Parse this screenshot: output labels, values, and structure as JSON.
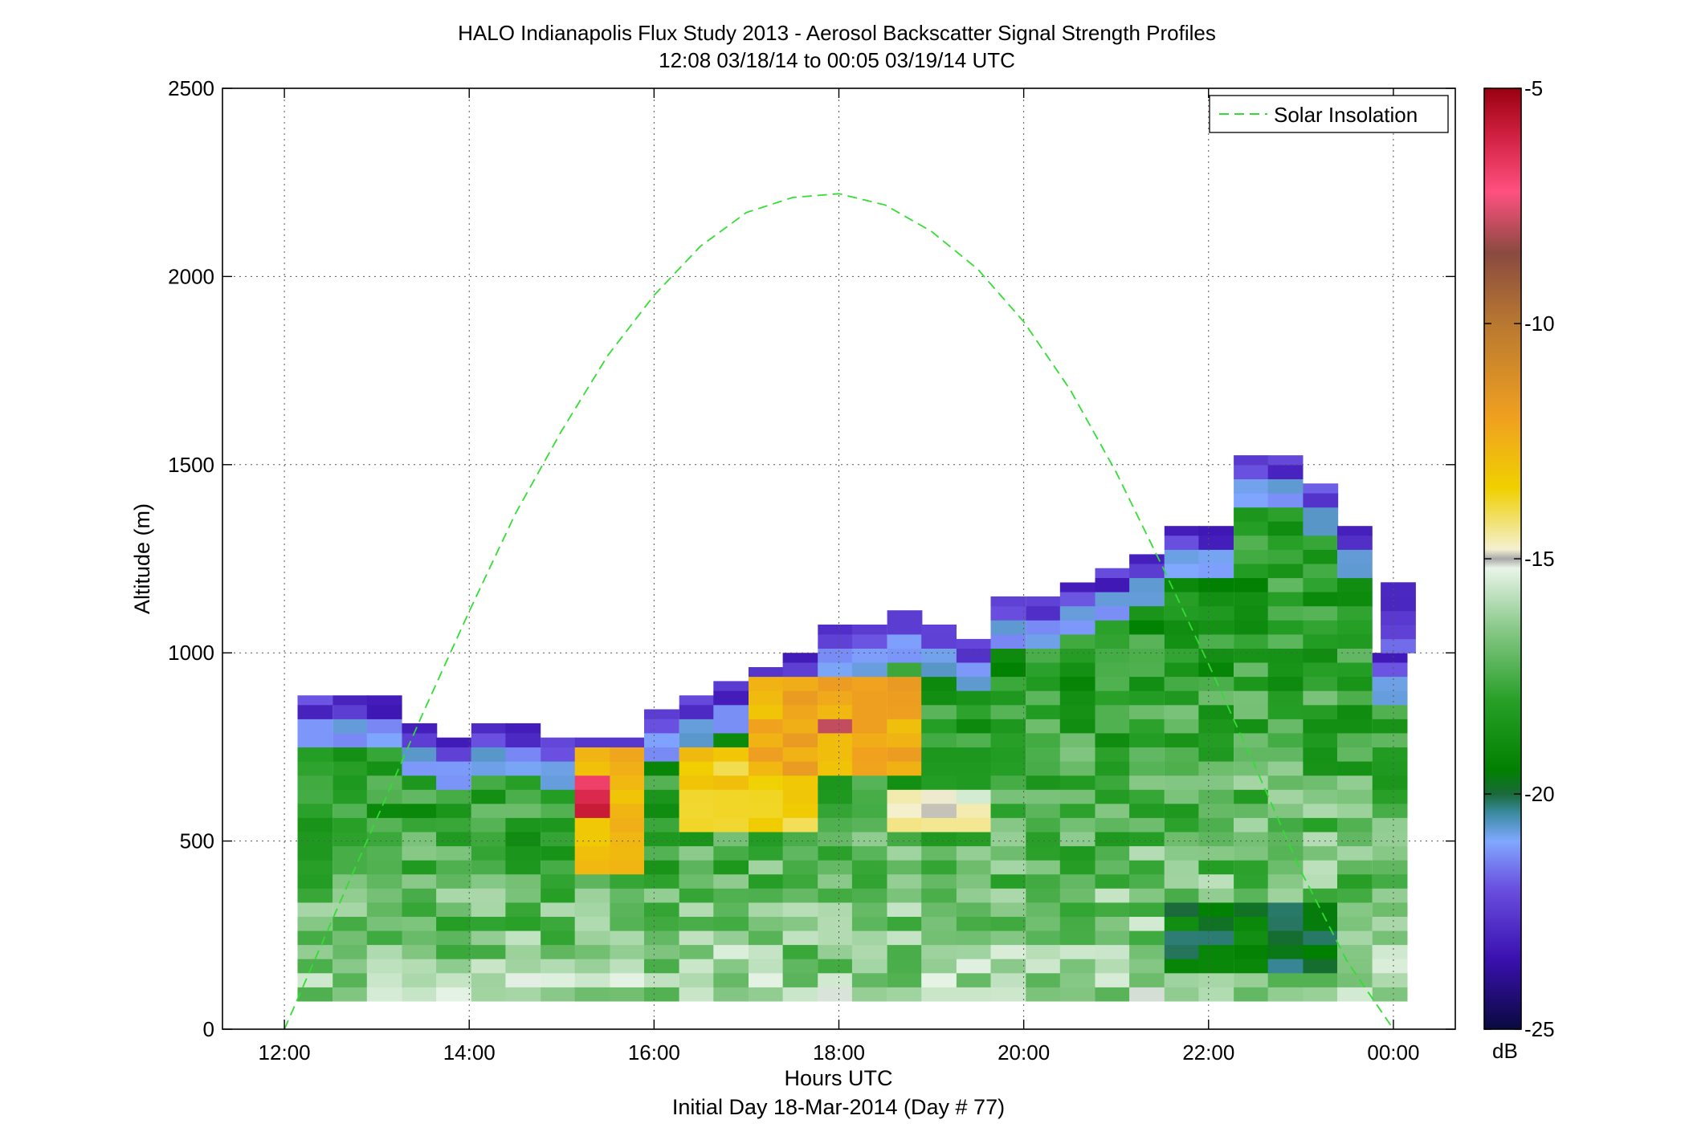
{
  "chart_data": {
    "type": "heatmap",
    "title_lines": [
      "HALO Indianapolis Flux Study 2013 - Aerosol Backscatter Signal Strength Profiles",
      "12:08 03/18/14 to 00:05 03/19/14  UTC"
    ],
    "xlabel_lines": [
      "Hours UTC",
      "Initial Day 18-Mar-2014 (Day # 77)"
    ],
    "ylabel": "Altitude (m)",
    "x_ticks": [
      {
        "value": 12,
        "label": "12:00"
      },
      {
        "value": 14,
        "label": "14:00"
      },
      {
        "value": 16,
        "label": "16:00"
      },
      {
        "value": 18,
        "label": "18:00"
      },
      {
        "value": 20,
        "label": "20:00"
      },
      {
        "value": 22,
        "label": "22:00"
      },
      {
        "value": 24,
        "label": "00:00"
      }
    ],
    "y_ticks": [
      {
        "value": 0,
        "label": "0"
      },
      {
        "value": 500,
        "label": "500"
      },
      {
        "value": 1000,
        "label": "1000"
      },
      {
        "value": 1500,
        "label": "1500"
      },
      {
        "value": 2000,
        "label": "2000"
      },
      {
        "value": 2500,
        "label": "2500"
      }
    ],
    "xlim": [
      11.33,
      24.67
    ],
    "ylim": [
      0,
      2500
    ],
    "grid": true,
    "colorbar": {
      "label": "dB",
      "min": -25,
      "max": -5,
      "ticks": [
        {
          "value": -5,
          "label": "-5"
        },
        {
          "value": -10,
          "label": "-10"
        },
        {
          "value": -15,
          "label": "-15"
        },
        {
          "value": -20,
          "label": "-20"
        },
        {
          "value": -25,
          "label": "-25"
        }
      ],
      "stops": [
        {
          "v": -25,
          "c": "#0a0a40"
        },
        {
          "v": -23.5,
          "c": "#3a10b0"
        },
        {
          "v": -22,
          "c": "#6a50e0"
        },
        {
          "v": -21,
          "c": "#80a8ff"
        },
        {
          "v": -20.4,
          "c": "#3a8aa0"
        },
        {
          "v": -20,
          "c": "#1a6a3a"
        },
        {
          "v": -19.5,
          "c": "#008000"
        },
        {
          "v": -18,
          "c": "#28a028"
        },
        {
          "v": -16.5,
          "c": "#88c888"
        },
        {
          "v": -15.2,
          "c": "#e8f4e8"
        },
        {
          "v": -15,
          "c": "#a8a8a8"
        },
        {
          "v": -14.8,
          "c": "#f4f0d0"
        },
        {
          "v": -13.5,
          "c": "#f0d000"
        },
        {
          "v": -12,
          "c": "#f0a020"
        },
        {
          "v": -10,
          "c": "#b87830"
        },
        {
          "v": -8.5,
          "c": "#8a4a40"
        },
        {
          "v": -7.2,
          "c": "#ff5080"
        },
        {
          "v": -6,
          "c": "#d02040"
        },
        {
          "v": -5,
          "c": "#9a0010"
        }
      ]
    },
    "legend": {
      "position": "top-right",
      "entries": [
        {
          "label": "Solar Insolation",
          "color": "#33dd33",
          "style": "dashed"
        }
      ]
    },
    "solar_insolation": {
      "color": "#33dd33",
      "x": [
        12.0,
        12.5,
        13.0,
        13.5,
        14.0,
        14.5,
        15.0,
        15.5,
        16.0,
        16.5,
        17.0,
        17.5,
        18.0,
        18.5,
        19.0,
        19.5,
        20.0,
        20.5,
        21.0,
        21.5,
        22.0,
        22.5,
        23.0,
        23.5,
        24.0
      ],
      "y": [
        0,
        280,
        560,
        840,
        1110,
        1370,
        1590,
        1790,
        1950,
        2080,
        2170,
        2210,
        2220,
        2190,
        2120,
        2020,
        1880,
        1700,
        1480,
        1230,
        970,
        700,
        420,
        180,
        0
      ]
    },
    "profiles": {
      "time_step_hours": 0.375,
      "altitude_bin_m": 37.5,
      "first_bin_bottom_m": 75,
      "times": [
        12.33,
        12.71,
        13.08,
        13.46,
        13.83,
        14.21,
        14.58,
        14.96,
        15.33,
        15.71,
        16.08,
        16.46,
        16.83,
        17.21,
        17.58,
        17.96,
        18.33,
        18.71,
        19.08,
        19.46,
        19.83,
        20.21,
        20.58,
        20.96,
        21.33,
        21.71,
        22.08,
        22.46,
        22.83,
        23.21,
        23.58,
        23.96
      ],
      "tops_m": [
        887,
        887,
        887,
        813,
        775,
        813,
        813,
        775,
        775,
        775,
        850,
        887,
        925,
        962,
        1000,
        1075,
        1075,
        1113,
        1075,
        1037,
        1150,
        1150,
        1187,
        1225,
        1262,
        1337,
        1337,
        1525,
        1525,
        1450,
        1337,
        1000
      ],
      "extra_top_bins": [
        {
          "time": 24.05,
          "top_m": 1187
        }
      ],
      "core_features": [
        {
          "time_range": [
            15.0,
            15.8
          ],
          "alt_range": [
            380,
            720
          ],
          "db": -12.8
        },
        {
          "time_range": [
            15.2,
            15.6
          ],
          "alt_range": [
            550,
            650
          ],
          "db": -6.0
        },
        {
          "time_range": [
            16.3,
            17.7
          ],
          "alt_range": [
            520,
            720
          ],
          "db": -13.5
        },
        {
          "time_range": [
            17.2,
            19.0
          ],
          "alt_range": [
            650,
            920
          ],
          "db": -12.5
        },
        {
          "time_range": [
            17.8,
            18.0
          ],
          "alt_range": [
            780,
            820
          ],
          "db": -7.2
        },
        {
          "time_range": [
            18.5,
            19.5
          ],
          "alt_range": [
            500,
            600
          ],
          "db": -15.0
        },
        {
          "time_range": [
            21.5,
            23.5
          ],
          "alt_range": [
            120,
            300
          ],
          "db": -19.6
        }
      ]
    }
  }
}
